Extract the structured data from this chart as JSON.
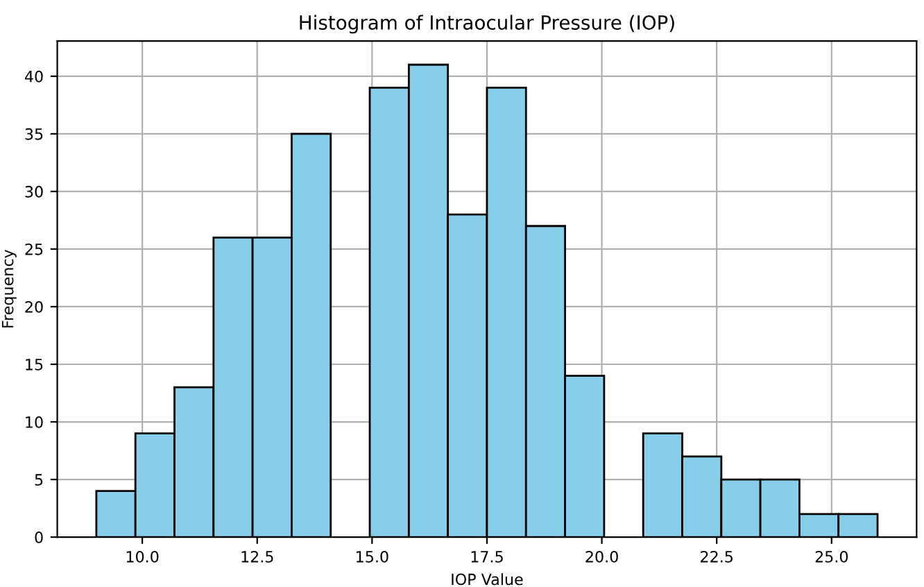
{
  "chart_data": {
    "type": "histogram",
    "title": "Histogram of Intraocular Pressure (IOP)",
    "xlabel": "IOP Value",
    "ylabel": "Frequency",
    "bins": [
      9.0,
      9.85,
      10.7,
      11.55,
      12.4,
      13.25,
      14.1,
      14.95,
      15.8,
      16.65,
      17.5,
      18.35,
      19.2,
      20.05,
      20.9,
      21.75,
      22.6,
      23.45,
      24.3,
      25.15,
      26.0
    ],
    "values": [
      4,
      9,
      13,
      26,
      26,
      35,
      0,
      39,
      41,
      28,
      39,
      27,
      14,
      0,
      9,
      7,
      5,
      5,
      2,
      2
    ],
    "color": "#87ceeb",
    "xlim": [
      8.15,
      26.85
    ],
    "xticks": [
      {
        "value": 10,
        "label": "10.0"
      },
      {
        "value": 12.5,
        "label": "12.5"
      },
      {
        "value": 15,
        "label": "15.0"
      },
      {
        "value": 17.5,
        "label": "17.5"
      },
      {
        "value": 20,
        "label": "20.0"
      },
      {
        "value": 22.5,
        "label": "22.5"
      },
      {
        "value": 25,
        "label": "25.0"
      }
    ],
    "ylim": [
      0,
      43.05
    ],
    "yticks": [
      0,
      5,
      10,
      15,
      20,
      25,
      30,
      35,
      40
    ],
    "grid": true
  }
}
